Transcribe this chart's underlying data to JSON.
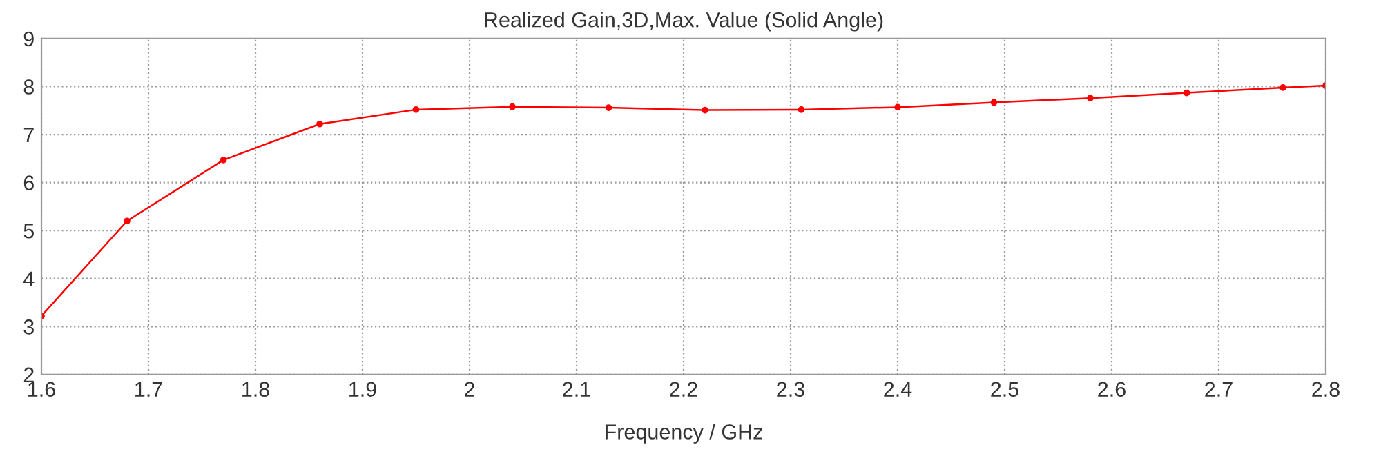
{
  "chart_data": {
    "type": "line",
    "title": "Realized Gain,3D,Max. Value (Solid Angle)",
    "xlabel": "Frequency / GHz",
    "x": [
      1.6,
      1.68,
      1.77,
      1.86,
      1.95,
      2.04,
      2.13,
      2.22,
      2.31,
      2.4,
      2.49,
      2.58,
      2.67,
      2.76,
      2.8
    ],
    "series": [
      {
        "color": "#ff0000",
        "values": [
          3.22,
          5.2,
          6.47,
          7.22,
          7.52,
          7.58,
          7.56,
          7.51,
          7.52,
          7.57,
          7.67,
          7.76,
          7.87,
          7.98,
          8.02
        ]
      }
    ],
    "xlim": [
      1.6,
      2.8
    ],
    "xticks": [
      1.6,
      1.7,
      1.8,
      1.9,
      2,
      2.1,
      2.2,
      2.3,
      2.4,
      2.5,
      2.6,
      2.7,
      2.8
    ],
    "ylim": [
      2,
      9
    ],
    "yticks": [
      2,
      3,
      4,
      5,
      6,
      7,
      8,
      9
    ],
    "grid": true,
    "marker": "circle",
    "line_style": "solid",
    "legend": false
  }
}
